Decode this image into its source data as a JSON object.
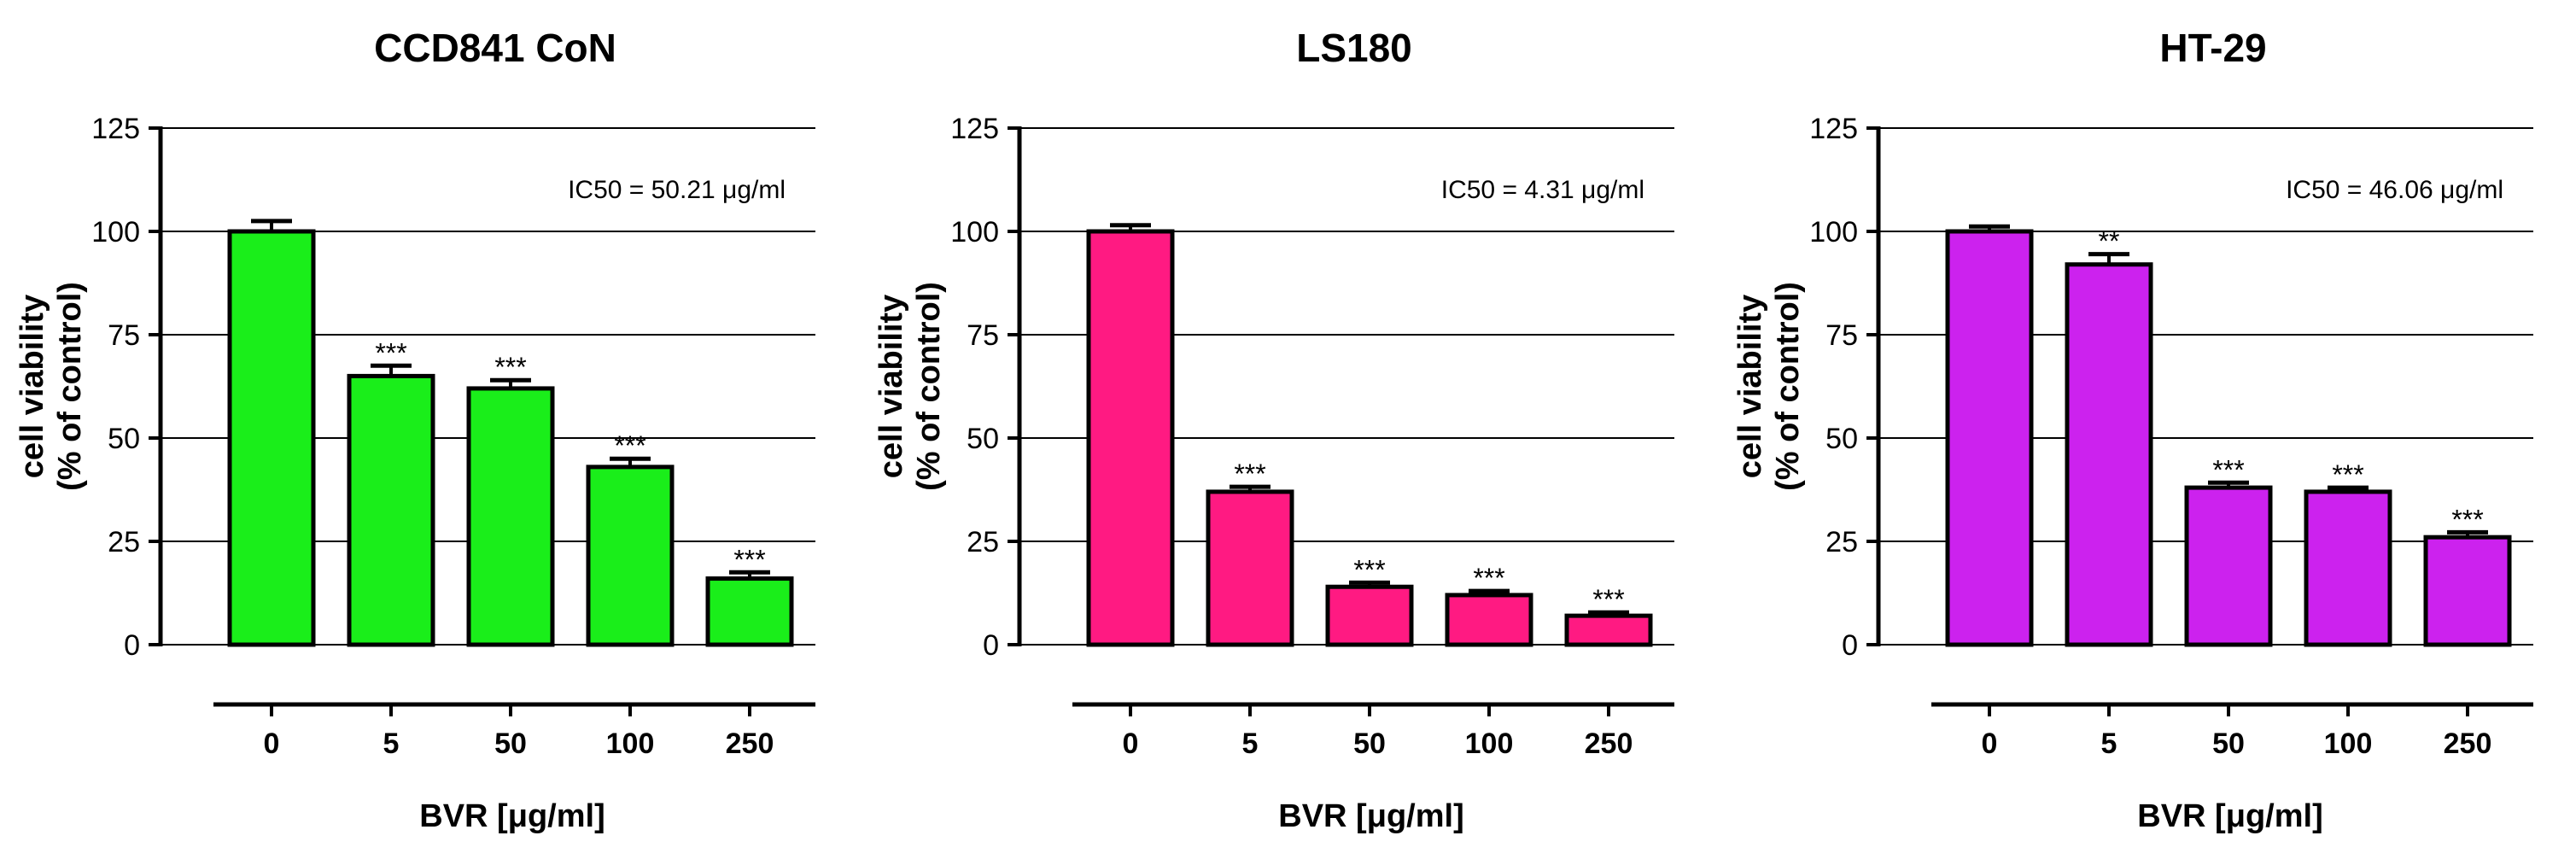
{
  "chart_data": [
    {
      "type": "bar",
      "title": "CCD841 CoN",
      "categories": [
        "0",
        "5",
        "50",
        "100",
        "250"
      ],
      "values": [
        100,
        65,
        62,
        43,
        16
      ],
      "errors": [
        2.5,
        2.5,
        2,
        2,
        1.5
      ],
      "significance": [
        "",
        "***",
        "***",
        "***",
        "***"
      ],
      "annotation": "IC50 = 50.21 μg/ml",
      "ylabel_line1": "cell viability",
      "ylabel_line2": "(% of control)",
      "xlabel": "BVR [μg/ml]",
      "yticks": [
        "0",
        "25",
        "50",
        "75",
        "100",
        "125"
      ],
      "ylim": [
        0,
        125
      ],
      "grid": "horizontal",
      "color": "#1aee1a"
    },
    {
      "type": "bar",
      "title": "LS180",
      "categories": [
        "0",
        "5",
        "50",
        "100",
        "250"
      ],
      "values": [
        100,
        37,
        14,
        12,
        7
      ],
      "errors": [
        1.5,
        1.2,
        1,
        1,
        0.8
      ],
      "significance": [
        "",
        "***",
        "***",
        "***",
        "***"
      ],
      "annotation": "IC50 = 4.31 μg/ml",
      "ylabel_line1": "cell viability",
      "ylabel_line2": "(% of control)",
      "xlabel": "BVR [μg/ml]",
      "yticks": [
        "0",
        "25",
        "50",
        "75",
        "100",
        "125"
      ],
      "ylim": [
        0,
        125
      ],
      "grid": "horizontal",
      "color": "#ff1a82"
    },
    {
      "type": "bar",
      "title": "HT-29",
      "categories": [
        "0",
        "5",
        "50",
        "100",
        "250"
      ],
      "values": [
        100,
        92,
        38,
        37,
        26
      ],
      "errors": [
        1.2,
        2.5,
        1.2,
        1,
        1.2
      ],
      "significance": [
        "",
        "**",
        "***",
        "***",
        "***"
      ],
      "annotation": "IC50 = 46.06 μg/ml",
      "ylabel_line1": "cell viability",
      "ylabel_line2": "(% of control)",
      "xlabel": "BVR [μg/ml]",
      "yticks": [
        "0",
        "25",
        "50",
        "75",
        "100",
        "125"
      ],
      "ylim": [
        0,
        125
      ],
      "grid": "horizontal",
      "color": "#cc22ee"
    }
  ]
}
